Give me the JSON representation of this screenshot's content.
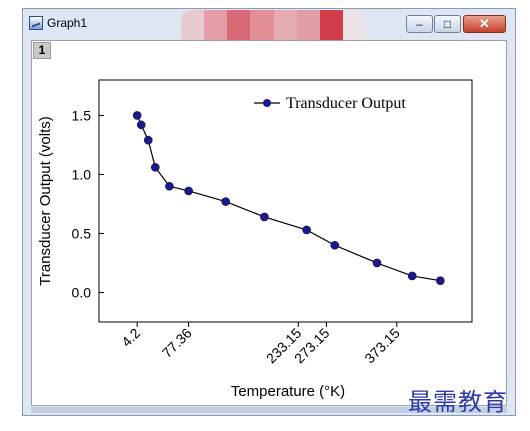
{
  "window": {
    "title": "Graph1",
    "layer_label": "1",
    "buttons": {
      "minimize": "–",
      "maximize": "□",
      "close": "✕"
    },
    "obscured_colors": [
      "#e8c9cc",
      "#e39aa2",
      "#d9646f",
      "#e38a92",
      "#e6a8ae",
      "#e19aa1",
      "#d2323f",
      "#ece3e6"
    ]
  },
  "chart_data": {
    "type": "line",
    "xlabel": "Temperature (°K)",
    "ylabel": "Transducer Output (volts)",
    "x_tick_labels": [
      {
        "label": "4.2",
        "x": 4.2
      },
      {
        "label": "77.36",
        "x": 77.36
      },
      {
        "label": "233.15",
        "x": 233.15
      },
      {
        "label": "273.15",
        "x": 273.15
      },
      {
        "label": "373.15",
        "x": 373.15
      }
    ],
    "y_ticks": [
      0.0,
      0.5,
      1.0,
      1.5
    ],
    "y_tick_labels": [
      "0.0",
      "0.5",
      "1.0",
      "1.5"
    ],
    "xlim": [
      -50,
      480
    ],
    "ylim": [
      -0.25,
      1.8
    ],
    "legend_position": "top-right",
    "series": [
      {
        "name": "Transducer Output",
        "color": "#1a1a8c",
        "x": [
          4.2,
          10,
          20,
          30,
          50,
          77.36,
          130,
          185,
          245,
          285,
          345,
          395,
          435
        ],
        "y": [
          1.5,
          1.42,
          1.29,
          1.06,
          0.9,
          0.86,
          0.77,
          0.64,
          0.53,
          0.4,
          0.25,
          0.14,
          0.1
        ]
      }
    ]
  },
  "watermark": "最需教育"
}
